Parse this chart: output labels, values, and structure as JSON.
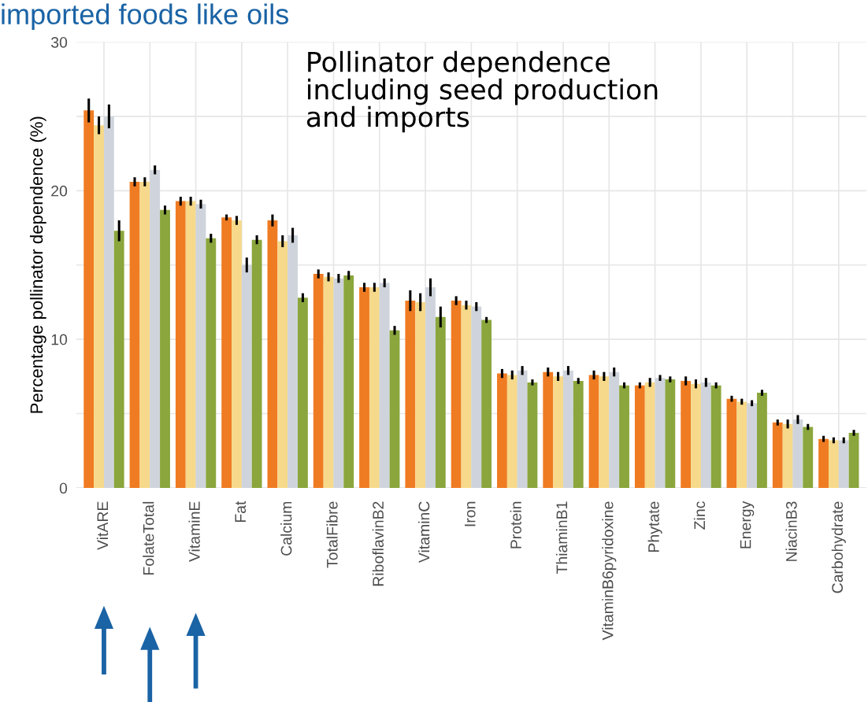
{
  "chart_data": {
    "type": "bar",
    "title": "imported foods like oils",
    "ylabel": "Percentage pollinator dependence (%)",
    "annotations": [
      "Pollinator dependence\nincluding seed production\nand imports"
    ],
    "categories": [
      "VitARE",
      "FolateTotal",
      "VitaminE",
      "Fat",
      "Calcium",
      "TotalFibre",
      "RiboflavinB2",
      "VitaminC",
      "Iron",
      "Protein",
      "ThiaminB1",
      "VitaminB6pyridoxine",
      "Phytate",
      "Zinc",
      "Energy",
      "NiacinB3",
      "Carbohydrate"
    ],
    "series": [
      {
        "color": "#ef7b22",
        "values": [
          25.4,
          20.6,
          19.3,
          18.2,
          18.0,
          14.4,
          13.5,
          12.6,
          12.6,
          7.7,
          7.8,
          7.6,
          6.9,
          7.2,
          6.0,
          4.4,
          3.3
        ],
        "errors": [
          0.8,
          0.3,
          0.3,
          0.2,
          0.4,
          0.3,
          0.3,
          0.7,
          0.3,
          0.3,
          0.3,
          0.3,
          0.2,
          0.3,
          0.2,
          0.2,
          0.2
        ]
      },
      {
        "color": "#f6d98a",
        "values": [
          24.4,
          20.6,
          19.3,
          18.0,
          16.6,
          14.2,
          13.5,
          12.5,
          12.3,
          7.6,
          7.5,
          7.5,
          7.1,
          7.0,
          5.8,
          4.3,
          3.2
        ],
        "errors": [
          0.6,
          0.3,
          0.3,
          0.3,
          0.4,
          0.3,
          0.3,
          0.6,
          0.3,
          0.3,
          0.3,
          0.3,
          0.3,
          0.3,
          0.2,
          0.3,
          0.2
        ]
      },
      {
        "color": "#cfd4dc",
        "values": [
          25.0,
          21.4,
          19.1,
          15.0,
          17.0,
          14.1,
          13.8,
          13.5,
          12.2,
          7.9,
          7.9,
          7.8,
          7.4,
          7.1,
          5.7,
          4.6,
          3.2
        ],
        "errors": [
          0.8,
          0.3,
          0.3,
          0.5,
          0.5,
          0.3,
          0.3,
          0.6,
          0.3,
          0.3,
          0.3,
          0.3,
          0.2,
          0.3,
          0.2,
          0.3,
          0.2
        ]
      },
      {
        "color": "#8aa63c",
        "values": [
          17.3,
          18.7,
          16.8,
          16.7,
          12.8,
          14.3,
          10.6,
          11.5,
          11.3,
          7.1,
          7.2,
          6.9,
          7.3,
          6.9,
          6.4,
          4.1,
          3.7
        ],
        "errors": [
          0.7,
          0.3,
          0.3,
          0.3,
          0.3,
          0.3,
          0.3,
          0.7,
          0.2,
          0.2,
          0.2,
          0.2,
          0.2,
          0.2,
          0.2,
          0.2,
          0.2
        ]
      }
    ],
    "ylim": [
      0,
      30
    ],
    "yticks": [
      0,
      {
        "value": 5,
        "label": null
      },
      10,
      {
        "value": 15,
        "label": null
      },
      20,
      {
        "value": 25,
        "label": null
      },
      30
    ],
    "grid": true
  }
}
